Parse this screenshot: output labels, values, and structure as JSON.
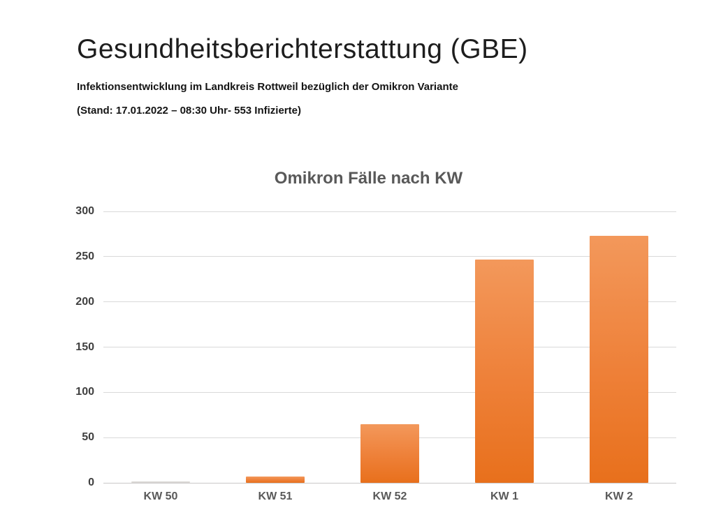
{
  "page": {
    "title": "Gesundheitsberichterstattung (GBE)",
    "subtitle": "Infektionsentwicklung im Landkreis Rottweil bezüglich der Omikron Variante",
    "status_line": "(Stand: 17.01.2022 – 08:30 Uhr- 553 Infizierte)"
  },
  "chart_data": {
    "type": "bar",
    "title": "Omikron Fälle nach KW",
    "categories": [
      "KW 50",
      "KW 51",
      "KW 52",
      "KW 1",
      "KW 2"
    ],
    "values": [
      1,
      7,
      65,
      247,
      273
    ],
    "xlabel": "",
    "ylabel": "",
    "ylim": [
      0,
      300
    ],
    "yticks": [
      0,
      50,
      100,
      150,
      200,
      250,
      300
    ],
    "grid": true,
    "legend": false,
    "colors": {
      "bar_top": "#f3985b",
      "bar_mid": "#ee8038",
      "bar_bottom": "#e8701c",
      "gridline": "#d9d9d9",
      "axis_line": "#c9c7c7",
      "title_text": "#595959",
      "tick_text": "#404040",
      "heading_text": "#1d1d1d"
    }
  }
}
